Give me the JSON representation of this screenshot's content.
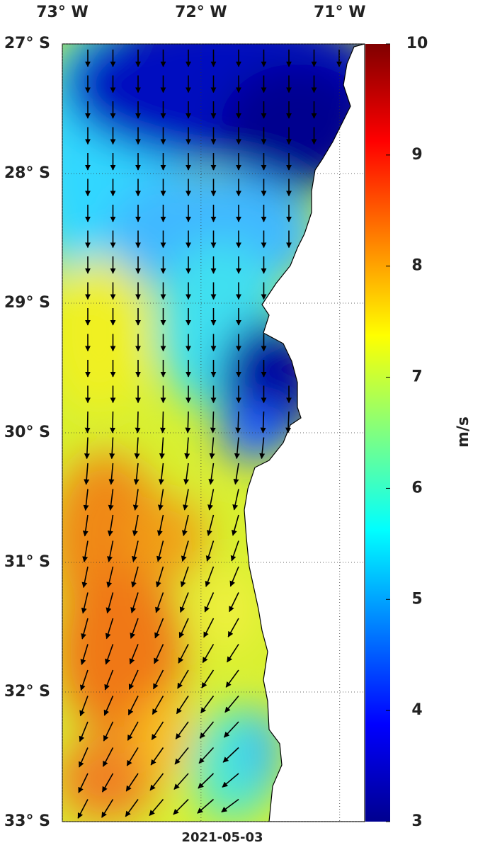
{
  "map": {
    "lonlim": [
      -73,
      -70.82
    ],
    "latlim": [
      -33,
      -27
    ],
    "lon_ticks": [
      {
        "value": -73,
        "label": "73° W"
      },
      {
        "value": -72,
        "label": "72° W"
      },
      {
        "value": -71,
        "label": "71° W"
      }
    ],
    "lat_ticks": [
      {
        "value": -27,
        "label": "27° S"
      },
      {
        "value": -28,
        "label": "28° S"
      },
      {
        "value": -29,
        "label": "29° S"
      },
      {
        "value": -30,
        "label": "30° S"
      },
      {
        "value": -31,
        "label": "31° S"
      },
      {
        "value": -32,
        "label": "32° S"
      },
      {
        "value": -33,
        "label": "33° S"
      }
    ]
  },
  "colorbar": {
    "label": "m/s",
    "lim": [
      3,
      10
    ],
    "ticks": [
      3,
      4,
      5,
      6,
      7,
      8,
      9,
      10
    ]
  },
  "date": "2021-05-03"
}
